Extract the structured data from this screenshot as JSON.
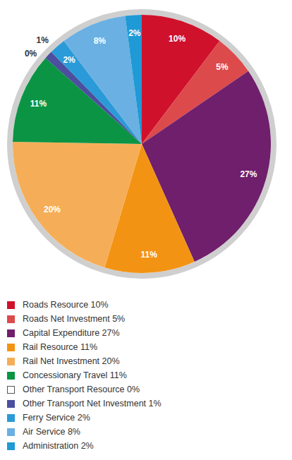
{
  "chart_data": {
    "type": "pie",
    "categories": [
      "Roads Resource 10%",
      "Roads Net Investment 5%",
      "Capital Expenditure 27%",
      "Rail Resource 11%",
      "Rail Net Investment 20%",
      "Concessionary Travel 11%",
      "Other Transport Resource 0%",
      "Other Transport Net Investment 1%",
      "Ferry Service 2%",
      "Air Service 8%",
      "Administration 2%"
    ],
    "values": [
      10,
      5,
      27,
      11,
      20,
      11,
      0,
      1,
      2,
      8,
      2
    ],
    "value_labels": [
      "10%",
      "5%",
      "27%",
      "11%",
      "20%",
      "11%",
      "0%",
      "1%",
      "2%",
      "8%",
      "2%"
    ],
    "colors": [
      "#d0112b",
      "#dc4a4b",
      "#6f1f6b",
      "#f39313",
      "#f5ae57",
      "#0b9444",
      "#ffffff",
      "#4b4f9e",
      "#2a9ad8",
      "#6ab0e2",
      "#1f9ad6"
    ],
    "data_labels": true,
    "legend": "bottom"
  }
}
